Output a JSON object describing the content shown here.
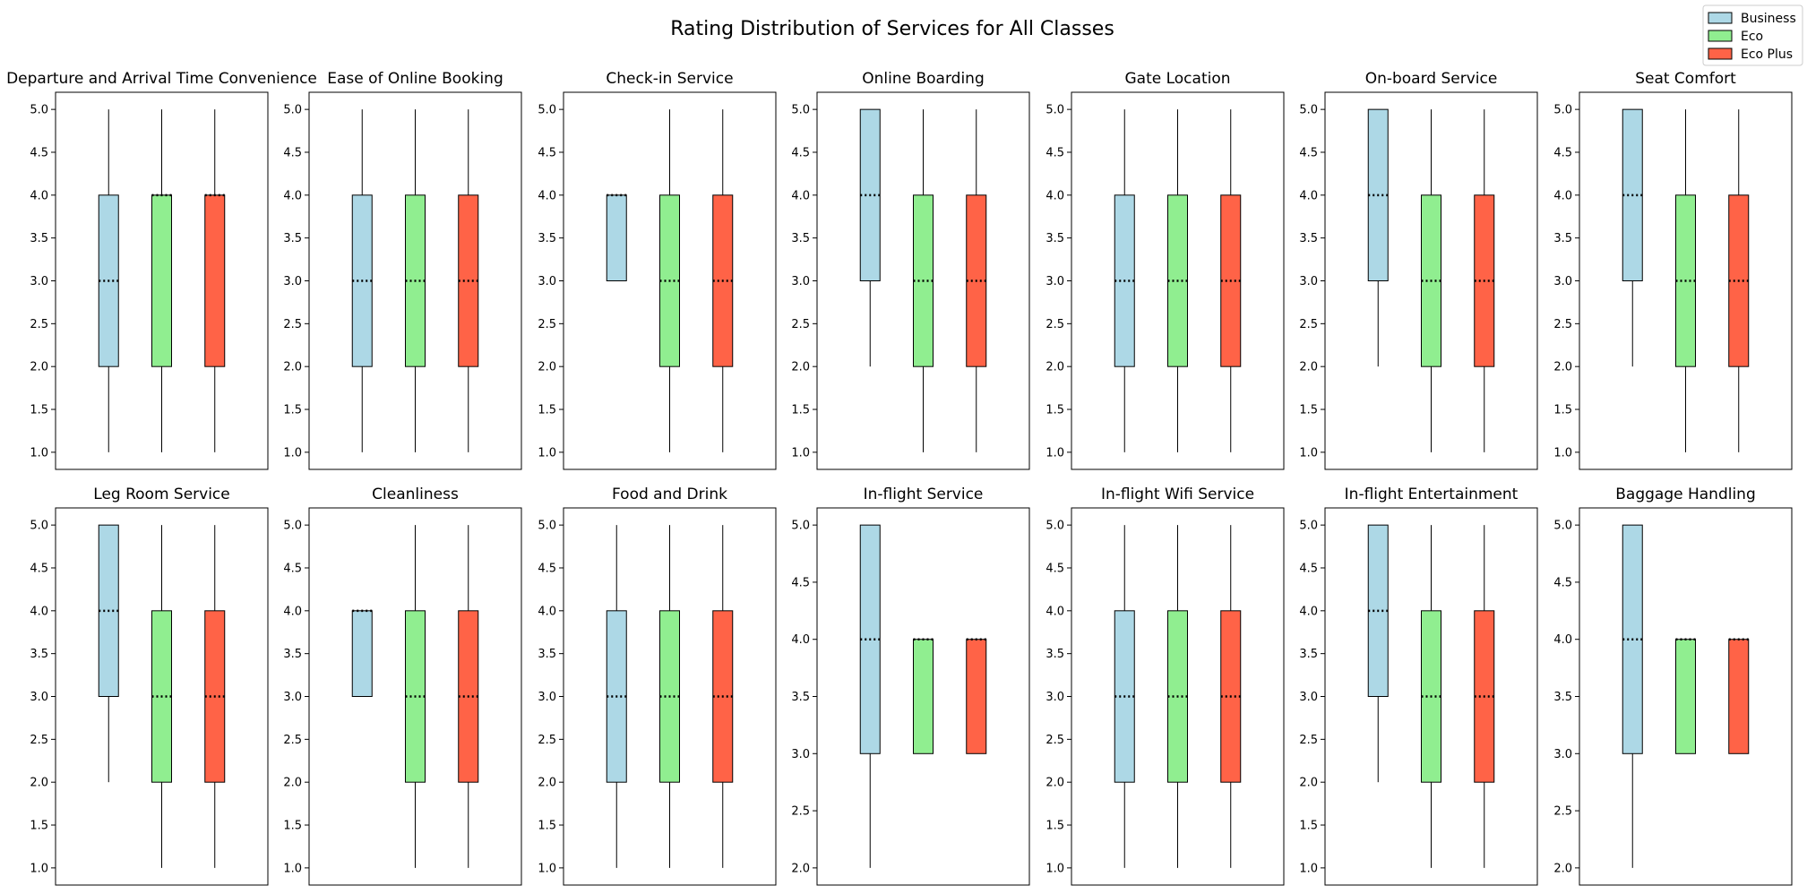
{
  "title": "Rating Distribution of Services for All Classes",
  "legend": {
    "placement": "top-right",
    "items": [
      {
        "label": "Business",
        "color": "#add8e6"
      },
      {
        "label": "Eco",
        "color": "#90ee90"
      },
      {
        "label": "Eco Plus",
        "color": "#ff6347"
      }
    ]
  },
  "chart_data": [
    {
      "type": "box",
      "title": "Departure and Arrival Time Convenience",
      "ylim": [
        0.8,
        5.2
      ],
      "yticks": [
        "1.0",
        "1.5",
        "2.0",
        "2.5",
        "3.0",
        "3.5",
        "4.0",
        "4.5",
        "5.0"
      ],
      "series": [
        {
          "name": "Business",
          "whislo": 1,
          "q1": 2,
          "med": 3,
          "q3": 4,
          "whishi": 5
        },
        {
          "name": "Eco",
          "whislo": 1,
          "q1": 2,
          "med": 4,
          "q3": 4,
          "whishi": 5
        },
        {
          "name": "Eco Plus",
          "whislo": 1,
          "q1": 2,
          "med": 4,
          "q3": 4,
          "whishi": 5
        }
      ]
    },
    {
      "type": "box",
      "title": "Ease of Online Booking",
      "ylim": [
        0.8,
        5.2
      ],
      "yticks": [
        "1.0",
        "1.5",
        "2.0",
        "2.5",
        "3.0",
        "3.5",
        "4.0",
        "4.5",
        "5.0"
      ],
      "series": [
        {
          "name": "Business",
          "whislo": 1,
          "q1": 2,
          "med": 3,
          "q3": 4,
          "whishi": 5
        },
        {
          "name": "Eco",
          "whislo": 1,
          "q1": 2,
          "med": 3,
          "q3": 4,
          "whishi": 5
        },
        {
          "name": "Eco Plus",
          "whislo": 1,
          "q1": 2,
          "med": 3,
          "q3": 4,
          "whishi": 5
        }
      ]
    },
    {
      "type": "box",
      "title": "Check-in Service",
      "ylim": [
        0.8,
        5.2
      ],
      "yticks": [
        "1.0",
        "1.5",
        "2.0",
        "2.5",
        "3.0",
        "3.5",
        "4.0",
        "4.5",
        "5.0"
      ],
      "series": [
        {
          "name": "Business",
          "whislo": 3,
          "q1": 3,
          "med": 4,
          "q3": 4,
          "whishi": 4
        },
        {
          "name": "Eco",
          "whislo": 1,
          "q1": 2,
          "med": 3,
          "q3": 4,
          "whishi": 5
        },
        {
          "name": "Eco Plus",
          "whislo": 1,
          "q1": 2,
          "med": 3,
          "q3": 4,
          "whishi": 5
        }
      ]
    },
    {
      "type": "box",
      "title": "Online Boarding",
      "ylim": [
        0.8,
        5.2
      ],
      "yticks": [
        "1.0",
        "1.5",
        "2.0",
        "2.5",
        "3.0",
        "3.5",
        "4.0",
        "4.5",
        "5.0"
      ],
      "series": [
        {
          "name": "Business",
          "whislo": 2,
          "q1": 3,
          "med": 4,
          "q3": 5,
          "whishi": 5
        },
        {
          "name": "Eco",
          "whislo": 1,
          "q1": 2,
          "med": 3,
          "q3": 4,
          "whishi": 5
        },
        {
          "name": "Eco Plus",
          "whislo": 1,
          "q1": 2,
          "med": 3,
          "q3": 4,
          "whishi": 5
        }
      ]
    },
    {
      "type": "box",
      "title": "Gate Location",
      "ylim": [
        0.8,
        5.2
      ],
      "yticks": [
        "1.0",
        "1.5",
        "2.0",
        "2.5",
        "3.0",
        "3.5",
        "4.0",
        "4.5",
        "5.0"
      ],
      "series": [
        {
          "name": "Business",
          "whislo": 1,
          "q1": 2,
          "med": 3,
          "q3": 4,
          "whishi": 5
        },
        {
          "name": "Eco",
          "whislo": 1,
          "q1": 2,
          "med": 3,
          "q3": 4,
          "whishi": 5
        },
        {
          "name": "Eco Plus",
          "whislo": 1,
          "q1": 2,
          "med": 3,
          "q3": 4,
          "whishi": 5
        }
      ]
    },
    {
      "type": "box",
      "title": "On-board Service",
      "ylim": [
        0.8,
        5.2
      ],
      "yticks": [
        "1.0",
        "1.5",
        "2.0",
        "2.5",
        "3.0",
        "3.5",
        "4.0",
        "4.5",
        "5.0"
      ],
      "series": [
        {
          "name": "Business",
          "whislo": 2,
          "q1": 3,
          "med": 4,
          "q3": 5,
          "whishi": 5
        },
        {
          "name": "Eco",
          "whislo": 1,
          "q1": 2,
          "med": 3,
          "q3": 4,
          "whishi": 5
        },
        {
          "name": "Eco Plus",
          "whislo": 1,
          "q1": 2,
          "med": 3,
          "q3": 4,
          "whishi": 5
        }
      ]
    },
    {
      "type": "box",
      "title": "Seat Comfort",
      "ylim": [
        0.8,
        5.2
      ],
      "yticks": [
        "1.0",
        "1.5",
        "2.0",
        "2.5",
        "3.0",
        "3.5",
        "4.0",
        "4.5",
        "5.0"
      ],
      "series": [
        {
          "name": "Business",
          "whislo": 2,
          "q1": 3,
          "med": 4,
          "q3": 5,
          "whishi": 5
        },
        {
          "name": "Eco",
          "whislo": 1,
          "q1": 2,
          "med": 3,
          "q3": 4,
          "whishi": 5
        },
        {
          "name": "Eco Plus",
          "whislo": 1,
          "q1": 2,
          "med": 3,
          "q3": 4,
          "whishi": 5
        }
      ]
    },
    {
      "type": "box",
      "title": "Leg Room Service",
      "ylim": [
        0.8,
        5.2
      ],
      "yticks": [
        "1.0",
        "1.5",
        "2.0",
        "2.5",
        "3.0",
        "3.5",
        "4.0",
        "4.5",
        "5.0"
      ],
      "series": [
        {
          "name": "Business",
          "whislo": 2,
          "q1": 3,
          "med": 4,
          "q3": 5,
          "whishi": 5
        },
        {
          "name": "Eco",
          "whislo": 1,
          "q1": 2,
          "med": 3,
          "q3": 4,
          "whishi": 5
        },
        {
          "name": "Eco Plus",
          "whislo": 1,
          "q1": 2,
          "med": 3,
          "q3": 4,
          "whishi": 5
        }
      ]
    },
    {
      "type": "box",
      "title": "Cleanliness",
      "ylim": [
        0.8,
        5.2
      ],
      "yticks": [
        "1.0",
        "1.5",
        "2.0",
        "2.5",
        "3.0",
        "3.5",
        "4.0",
        "4.5",
        "5.0"
      ],
      "series": [
        {
          "name": "Business",
          "whislo": 3,
          "q1": 3,
          "med": 4,
          "q3": 4,
          "whishi": 4
        },
        {
          "name": "Eco",
          "whislo": 1,
          "q1": 2,
          "med": 3,
          "q3": 4,
          "whishi": 5
        },
        {
          "name": "Eco Plus",
          "whislo": 1,
          "q1": 2,
          "med": 3,
          "q3": 4,
          "whishi": 5
        }
      ]
    },
    {
      "type": "box",
      "title": "Food and Drink",
      "ylim": [
        0.8,
        5.2
      ],
      "yticks": [
        "1.0",
        "1.5",
        "2.0",
        "2.5",
        "3.0",
        "3.5",
        "4.0",
        "4.5",
        "5.0"
      ],
      "series": [
        {
          "name": "Business",
          "whislo": 1,
          "q1": 2,
          "med": 3,
          "q3": 4,
          "whishi": 5
        },
        {
          "name": "Eco",
          "whislo": 1,
          "q1": 2,
          "med": 3,
          "q3": 4,
          "whishi": 5
        },
        {
          "name": "Eco Plus",
          "whislo": 1,
          "q1": 2,
          "med": 3,
          "q3": 4,
          "whishi": 5
        }
      ]
    },
    {
      "type": "box",
      "title": "In-flight Service",
      "ylim": [
        1.85,
        5.15
      ],
      "yticks": [
        "2.0",
        "2.5",
        "3.0",
        "3.5",
        "4.0",
        "4.5",
        "5.0"
      ],
      "series": [
        {
          "name": "Business",
          "whislo": 2,
          "q1": 3,
          "med": 4,
          "q3": 5,
          "whishi": 5
        },
        {
          "name": "Eco",
          "whislo": 3,
          "q1": 3,
          "med": 4,
          "q3": 4,
          "whishi": 4
        },
        {
          "name": "Eco Plus",
          "whislo": 3,
          "q1": 3,
          "med": 4,
          "q3": 4,
          "whishi": 4
        }
      ]
    },
    {
      "type": "box",
      "title": "In-flight Wifi Service",
      "ylim": [
        0.8,
        5.2
      ],
      "yticks": [
        "1.0",
        "1.5",
        "2.0",
        "2.5",
        "3.0",
        "3.5",
        "4.0",
        "4.5",
        "5.0"
      ],
      "series": [
        {
          "name": "Business",
          "whislo": 1,
          "q1": 2,
          "med": 3,
          "q3": 4,
          "whishi": 5
        },
        {
          "name": "Eco",
          "whislo": 1,
          "q1": 2,
          "med": 3,
          "q3": 4,
          "whishi": 5
        },
        {
          "name": "Eco Plus",
          "whislo": 1,
          "q1": 2,
          "med": 3,
          "q3": 4,
          "whishi": 5
        }
      ]
    },
    {
      "type": "box",
      "title": "In-flight Entertainment",
      "ylim": [
        0.8,
        5.2
      ],
      "yticks": [
        "1.0",
        "1.5",
        "2.0",
        "2.5",
        "3.0",
        "3.5",
        "4.0",
        "4.5",
        "5.0"
      ],
      "series": [
        {
          "name": "Business",
          "whislo": 2,
          "q1": 3,
          "med": 4,
          "q3": 5,
          "whishi": 5
        },
        {
          "name": "Eco",
          "whislo": 1,
          "q1": 2,
          "med": 3,
          "q3": 4,
          "whishi": 5
        },
        {
          "name": "Eco Plus",
          "whislo": 1,
          "q1": 2,
          "med": 3,
          "q3": 4,
          "whishi": 5
        }
      ]
    },
    {
      "type": "box",
      "title": "Baggage Handling",
      "ylim": [
        1.85,
        5.15
      ],
      "yticks": [
        "2.0",
        "2.5",
        "3.0",
        "3.5",
        "4.0",
        "4.5",
        "5.0"
      ],
      "series": [
        {
          "name": "Business",
          "whislo": 2,
          "q1": 3,
          "med": 4,
          "q3": 5,
          "whishi": 5
        },
        {
          "name": "Eco",
          "whislo": 3,
          "q1": 3,
          "med": 4,
          "q3": 4,
          "whishi": 4
        },
        {
          "name": "Eco Plus",
          "whislo": 3,
          "q1": 3,
          "med": 4,
          "q3": 4,
          "whishi": 4
        }
      ]
    }
  ]
}
